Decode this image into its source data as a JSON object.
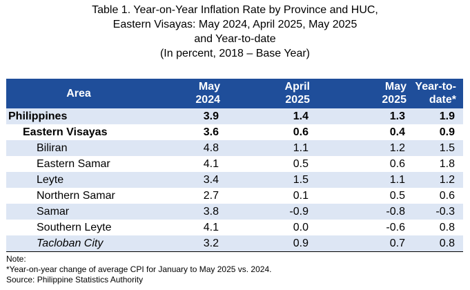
{
  "title_lines": [
    "Table 1. Year-on-Year Inflation Rate by Province and HUC,",
    "Eastern Visayas: May 2024, April 2025, May 2025",
    "and Year-to-date",
    "(In percent, 2018 – Base Year)"
  ],
  "headers": {
    "area": "Area",
    "c1_l1": "May",
    "c1_l2": "2024",
    "c2_l1": "April",
    "c2_l2": "2025",
    "c3_l1": "May",
    "c3_l2": "2025",
    "c4_l1": "Year-to-",
    "c4_l2": "date*"
  },
  "rows": [
    {
      "area": "Philippines",
      "v": [
        "3.9",
        "1.4",
        "1.3",
        "1.9"
      ]
    },
    {
      "area": "Eastern Visayas",
      "v": [
        "3.6",
        "0.6",
        "0.4",
        "0.9"
      ]
    },
    {
      "area": "Biliran",
      "v": [
        "4.8",
        "1.1",
        "1.2",
        "1.5"
      ]
    },
    {
      "area": "Eastern Samar",
      "v": [
        "4.1",
        "0.5",
        "0.6",
        "1.8"
      ]
    },
    {
      "area": "Leyte",
      "v": [
        "3.4",
        "1.5",
        "1.1",
        "1.2"
      ]
    },
    {
      "area": "Northern Samar",
      "v": [
        "2.7",
        "0.1",
        "0.5",
        "0.6"
      ]
    },
    {
      "area": "Samar",
      "v": [
        "3.8",
        "-0.9",
        "-0.8",
        "-0.3"
      ]
    },
    {
      "area": "Southern Leyte",
      "v": [
        "4.1",
        "0.0",
        "-0.6",
        "0.8"
      ]
    },
    {
      "area": "Tacloban City",
      "v": [
        "3.2",
        "0.9",
        "0.7",
        "0.8"
      ]
    }
  ],
  "notes": {
    "label": "Note:",
    "footnote": "*Year-on-year change of average CPI for January to May 2025 vs. 2024.",
    "source": "Source: Philippine Statistics Authority"
  },
  "colors": {
    "header_bg": "#1f4e9a",
    "band_bg": "#dde6f4"
  }
}
